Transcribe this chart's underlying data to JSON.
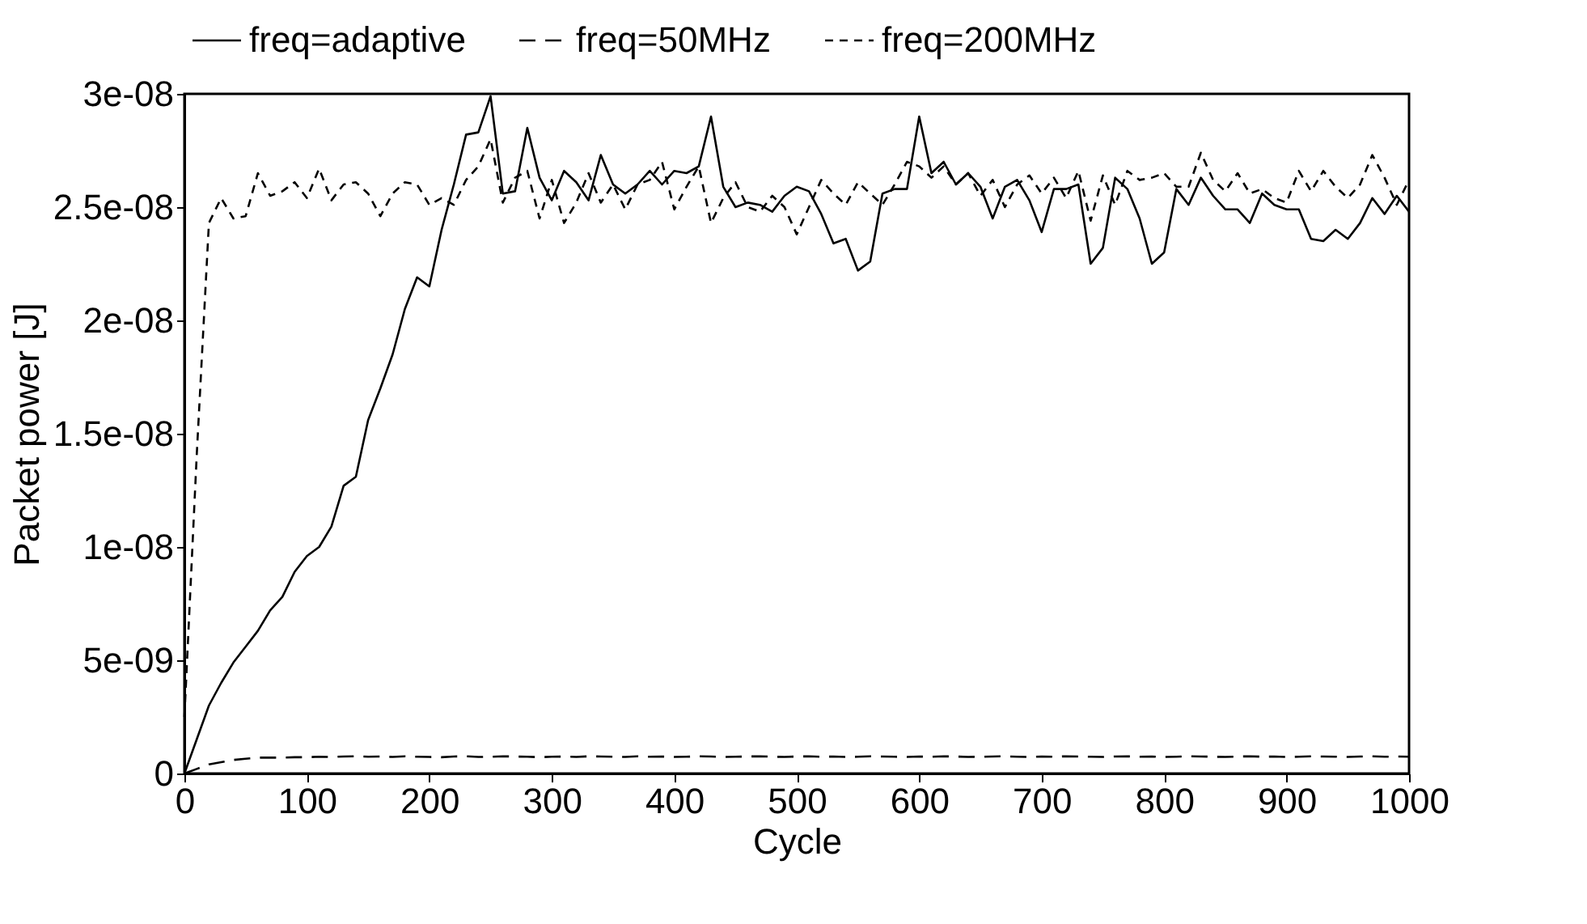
{
  "chart_data": {
    "type": "line",
    "xlabel": "Cycle",
    "ylabel": "Packet power [J]",
    "x": [
      0,
      10,
      20,
      30,
      40,
      50,
      60,
      70,
      80,
      90,
      100,
      110,
      120,
      130,
      140,
      150,
      160,
      170,
      180,
      190,
      200,
      210,
      220,
      230,
      240,
      250,
      260,
      270,
      280,
      290,
      300,
      310,
      320,
      330,
      340,
      350,
      360,
      370,
      380,
      390,
      400,
      410,
      420,
      430,
      440,
      450,
      460,
      470,
      480,
      490,
      500,
      510,
      520,
      530,
      540,
      550,
      560,
      570,
      580,
      590,
      600,
      610,
      620,
      630,
      640,
      650,
      660,
      670,
      680,
      690,
      700,
      710,
      720,
      730,
      740,
      750,
      760,
      770,
      780,
      790,
      800,
      810,
      820,
      830,
      840,
      850,
      860,
      870,
      880,
      890,
      900,
      910,
      920,
      930,
      940,
      950,
      960,
      970,
      980,
      990,
      1000
    ],
    "series": [
      {
        "name": "freq=adaptive",
        "color": "#000000",
        "line_style": "solid",
        "values": [
          0,
          1.5e-09,
          3e-09,
          4e-09,
          4.9e-09,
          5.6e-09,
          6.3e-09,
          7.2e-09,
          7.8e-09,
          8.9e-09,
          9.6e-09,
          1e-08,
          1.09e-08,
          1.27e-08,
          1.31e-08,
          1.56e-08,
          1.7e-08,
          1.85e-08,
          2.05e-08,
          2.19e-08,
          2.15e-08,
          2.4e-08,
          2.6e-08,
          2.82e-08,
          2.83e-08,
          2.99e-08,
          2.56e-08,
          2.57e-08,
          2.85e-08,
          2.63e-08,
          2.53e-08,
          2.66e-08,
          2.61e-08,
          2.53e-08,
          2.73e-08,
          2.6e-08,
          2.56e-08,
          2.6e-08,
          2.66e-08,
          2.6e-08,
          2.66e-08,
          2.65e-08,
          2.68e-08,
          2.9e-08,
          2.59e-08,
          2.5e-08,
          2.52e-08,
          2.51e-08,
          2.48e-08,
          2.55e-08,
          2.59e-08,
          2.57e-08,
          2.47e-08,
          2.34e-08,
          2.36e-08,
          2.22e-08,
          2.26e-08,
          2.56e-08,
          2.58e-08,
          2.58e-08,
          2.9e-08,
          2.65e-08,
          2.7e-08,
          2.6e-08,
          2.65e-08,
          2.59e-08,
          2.45e-08,
          2.59e-08,
          2.62e-08,
          2.53e-08,
          2.39e-08,
          2.58e-08,
          2.58e-08,
          2.6e-08,
          2.25e-08,
          2.32e-08,
          2.63e-08,
          2.58e-08,
          2.45e-08,
          2.25e-08,
          2.3e-08,
          2.58e-08,
          2.51e-08,
          2.63e-08,
          2.55e-08,
          2.49e-08,
          2.49e-08,
          2.43e-08,
          2.56e-08,
          2.51e-08,
          2.49e-08,
          2.49e-08,
          2.36e-08,
          2.35e-08,
          2.4e-08,
          2.36e-08,
          2.43e-08,
          2.54e-08,
          2.47e-08,
          2.55e-08,
          2.48e-08
        ]
      },
      {
        "name": "freq=50MHz",
        "color": "#000000",
        "line_style": "dashed",
        "values": [
          0,
          2e-10,
          4e-10,
          5e-10,
          6e-10,
          6.5e-10,
          7e-10,
          7e-10,
          7e-10,
          7.2e-10,
          7.2e-10,
          7.4e-10,
          7.3e-10,
          7.5e-10,
          7.6e-10,
          7.4e-10,
          7.5e-10,
          7.3e-10,
          7.6e-10,
          7.4e-10,
          7.3e-10,
          7.2e-10,
          7.5e-10,
          7.6e-10,
          7.3e-10,
          7.4e-10,
          7.6e-10,
          7.5e-10,
          7.4e-10,
          7.2e-10,
          7.4e-10,
          7.5e-10,
          7.3e-10,
          7.6e-10,
          7.5e-10,
          7.4e-10,
          7.3e-10,
          7.6e-10,
          7.4e-10,
          7.5e-10,
          7.3e-10,
          7.4e-10,
          7.6e-10,
          7.5e-10,
          7.3e-10,
          7.4e-10,
          7.5e-10,
          7.6e-10,
          7.4e-10,
          7.3e-10,
          7.5e-10,
          7.6e-10,
          7.4e-10,
          7.5e-10,
          7.3e-10,
          7.4e-10,
          7.6e-10,
          7.5e-10,
          7.4e-10,
          7.3e-10,
          7.5e-10,
          7.4e-10,
          7.6e-10,
          7.5e-10,
          7.3e-10,
          7.4e-10,
          7.5e-10,
          7.6e-10,
          7.4e-10,
          7.3e-10,
          7.5e-10,
          7.4e-10,
          7.6e-10,
          7.5e-10,
          7.4e-10,
          7.3e-10,
          7.5e-10,
          7.6e-10,
          7.4e-10,
          7.5e-10,
          7.3e-10,
          7.4e-10,
          7.6e-10,
          7.5e-10,
          7.4e-10,
          7.3e-10,
          7.5e-10,
          7.6e-10,
          7.4e-10,
          7.5e-10,
          7.3e-10,
          7.4e-10,
          7.6e-10,
          7.5e-10,
          7.4e-10,
          7.3e-10,
          7.5e-10,
          7.6e-10,
          7.4e-10,
          7.5e-10,
          7.4e-10
        ]
      },
      {
        "name": "freq=200MHz",
        "color": "#000000",
        "line_style": "dotted",
        "values": [
          2.5e-09,
          1.4e-08,
          2.43e-08,
          2.54e-08,
          2.45e-08,
          2.46e-08,
          2.65e-08,
          2.55e-08,
          2.57e-08,
          2.61e-08,
          2.54e-08,
          2.67e-08,
          2.53e-08,
          2.6e-08,
          2.61e-08,
          2.56e-08,
          2.46e-08,
          2.56e-08,
          2.61e-08,
          2.6e-08,
          2.51e-08,
          2.54e-08,
          2.51e-08,
          2.62e-08,
          2.68e-08,
          2.8e-08,
          2.52e-08,
          2.63e-08,
          2.66e-08,
          2.45e-08,
          2.62e-08,
          2.43e-08,
          2.52e-08,
          2.65e-08,
          2.52e-08,
          2.6e-08,
          2.49e-08,
          2.6e-08,
          2.62e-08,
          2.7e-08,
          2.49e-08,
          2.59e-08,
          2.68e-08,
          2.43e-08,
          2.54e-08,
          2.61e-08,
          2.5e-08,
          2.48e-08,
          2.55e-08,
          2.5e-08,
          2.38e-08,
          2.5e-08,
          2.62e-08,
          2.56e-08,
          2.51e-08,
          2.61e-08,
          2.56e-08,
          2.51e-08,
          2.6e-08,
          2.7e-08,
          2.68e-08,
          2.63e-08,
          2.68e-08,
          2.6e-08,
          2.65e-08,
          2.55e-08,
          2.62e-08,
          2.5e-08,
          2.6e-08,
          2.64e-08,
          2.56e-08,
          2.63e-08,
          2.54e-08,
          2.66e-08,
          2.44e-08,
          2.64e-08,
          2.51e-08,
          2.66e-08,
          2.62e-08,
          2.63e-08,
          2.65e-08,
          2.59e-08,
          2.59e-08,
          2.74e-08,
          2.62e-08,
          2.57e-08,
          2.65e-08,
          2.56e-08,
          2.58e-08,
          2.54e-08,
          2.52e-08,
          2.66e-08,
          2.57e-08,
          2.66e-08,
          2.59e-08,
          2.54e-08,
          2.6e-08,
          2.73e-08,
          2.63e-08,
          2.51e-08,
          2.62e-08
        ]
      }
    ],
    "xlim": [
      0,
      1000
    ],
    "xticks": [
      0,
      100,
      200,
      300,
      400,
      500,
      600,
      700,
      800,
      900,
      1000
    ],
    "ylim": [
      0,
      3e-08
    ],
    "yticks": [
      0,
      {
        "value": 5e-09,
        "label": "5e-09"
      },
      {
        "value": 1e-08,
        "label": "1e-08"
      },
      {
        "value": 1.5e-08,
        "label": "1.5e-08"
      },
      {
        "value": 2e-08,
        "label": "2e-08"
      },
      {
        "value": 2.5e-08,
        "label": "2.5e-08"
      },
      {
        "value": 3e-08,
        "label": "3e-08"
      }
    ],
    "legend": "top",
    "grid": false,
    "marker": "none"
  }
}
